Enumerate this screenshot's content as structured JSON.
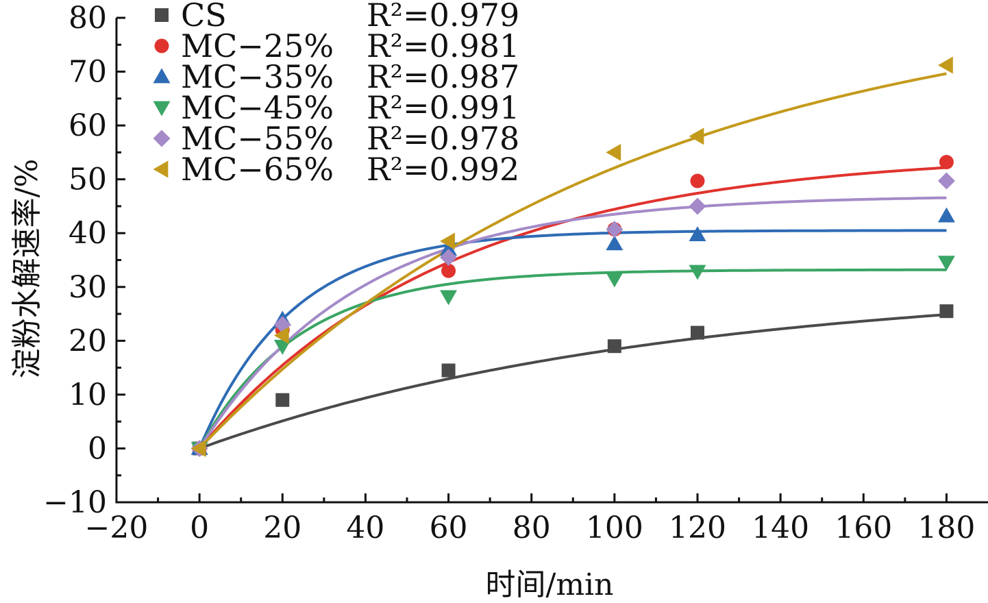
{
  "chart_data": {
    "type": "scatter",
    "xlabel": "时间/min",
    "ylabel": "淀粉水解速率/%",
    "xlim": [
      -20,
      190
    ],
    "ylim": [
      -10,
      80
    ],
    "xticks": [
      -20,
      0,
      20,
      40,
      60,
      80,
      100,
      120,
      140,
      160,
      180
    ],
    "yticks": [
      -10,
      0,
      10,
      20,
      30,
      40,
      50,
      60,
      70,
      80
    ],
    "grid": false,
    "legend_position": "top-left",
    "x": [
      0,
      20,
      60,
      100,
      120,
      180
    ],
    "series": [
      {
        "name": "CS",
        "r2": "R²=0.979",
        "marker": "square",
        "color": "#4a4a4a",
        "values": [
          0,
          9,
          14.5,
          19,
          21.5,
          25.5
        ],
        "fit": {
          "a": 31,
          "k": 0.009
        }
      },
      {
        "name": "MC−25%",
        "r2": "R²=0.981",
        "marker": "circle",
        "color": "#e0332e",
        "values": [
          0,
          22,
          33,
          40.7,
          49.7,
          53.2
        ],
        "fit": {
          "a": 55,
          "k": 0.0165
        }
      },
      {
        "name": "MC−35%",
        "r2": "R²=0.987",
        "marker": "triangle-up",
        "color": "#2e6bb5",
        "values": [
          0,
          24,
          37,
          38,
          39.7,
          43.2
        ],
        "fit": {
          "a": 40.5,
          "k": 0.045
        }
      },
      {
        "name": "MC−45%",
        "r2": "R²=0.991",
        "marker": "triangle-down",
        "color": "#3aa564",
        "values": [
          0,
          19,
          28.2,
          31.5,
          32.9,
          34.6
        ],
        "fit": {
          "a": 33.2,
          "k": 0.042
        }
      },
      {
        "name": "MC−55%",
        "r2": "R²=0.978",
        "marker": "diamond",
        "color": "#a48ac8",
        "values": [
          0,
          23,
          35.5,
          40.7,
          45,
          49.7
        ],
        "fit": {
          "a": 47,
          "k": 0.026
        }
      },
      {
        "name": "MC−65%",
        "r2": "R²=0.992",
        "marker": "triangle-left",
        "color": "#c49a1c",
        "values": [
          0,
          21,
          38.5,
          55,
          58,
          71.2
        ],
        "fit": {
          "a": 85,
          "k": 0.0095
        }
      }
    ]
  }
}
